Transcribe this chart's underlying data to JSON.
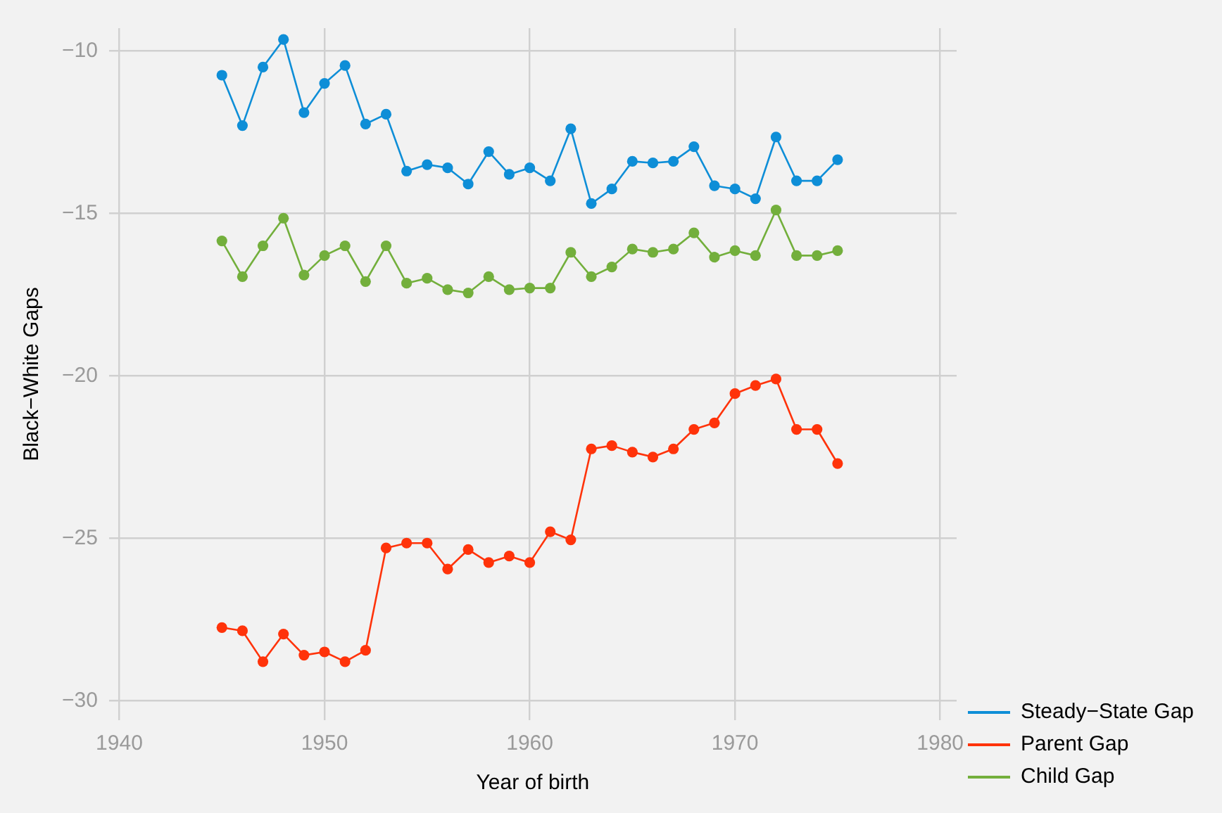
{
  "chart_data": {
    "type": "line",
    "xlabel": "Year of birth",
    "ylabel": "Black−White Gaps",
    "x": [
      1945,
      1946,
      1947,
      1948,
      1949,
      1950,
      1951,
      1952,
      1953,
      1954,
      1955,
      1956,
      1957,
      1958,
      1959,
      1960,
      1961,
      1962,
      1963,
      1964,
      1965,
      1966,
      1967,
      1968,
      1969,
      1970,
      1971,
      1972,
      1973,
      1974,
      1975
    ],
    "series": [
      {
        "name": "Steady−State Gap",
        "color": "#0e8ed7",
        "values": [
          -10.75,
          -12.3,
          -10.5,
          -9.65,
          -11.9,
          -11.0,
          -10.45,
          -12.25,
          -11.95,
          -13.7,
          -13.5,
          -13.6,
          -14.1,
          -13.1,
          -13.8,
          -13.6,
          -14.0,
          -12.4,
          -14.7,
          -14.25,
          -13.4,
          -13.45,
          -13.4,
          -12.95,
          -14.15,
          -14.25,
          -14.55,
          -12.65,
          -14.0,
          -14.0,
          -13.35
        ]
      },
      {
        "name": "Parent Gap",
        "color": "#ff330a",
        "values": [
          -27.75,
          -27.85,
          -28.8,
          -27.95,
          -28.6,
          -28.5,
          -28.8,
          -28.45,
          -25.3,
          -25.15,
          -25.15,
          -25.95,
          -25.35,
          -25.75,
          -25.55,
          -25.75,
          -24.8,
          -25.05,
          -22.25,
          -22.15,
          -22.35,
          -22.5,
          -22.25,
          -21.65,
          -21.45,
          -20.55,
          -20.3,
          -20.1,
          -21.65,
          -21.65,
          -22.7
        ]
      },
      {
        "name": "Child Gap",
        "color": "#73af3c",
        "values": [
          -15.85,
          -16.95,
          -16.0,
          -15.15,
          -16.9,
          -16.3,
          -16.0,
          -17.1,
          -16.0,
          -17.15,
          -17.0,
          -17.35,
          -17.45,
          -16.95,
          -17.35,
          -17.3,
          -17.3,
          -16.2,
          -16.95,
          -16.65,
          -16.1,
          -16.2,
          -16.1,
          -15.6,
          -16.35,
          -16.15,
          -16.3,
          -14.9,
          -16.3,
          -16.3,
          -16.15
        ]
      }
    ],
    "xlim": [
      1939.5,
      1980.8
    ],
    "xticks": [
      1940,
      1950,
      1960,
      1970,
      1980
    ],
    "ylim": [
      -30.6,
      -9.3
    ],
    "yticks": [
      -30,
      -25,
      -20,
      -15,
      -10
    ],
    "grid": true,
    "legend": "bottom right",
    "marker": "circle",
    "line_style": "solid"
  }
}
